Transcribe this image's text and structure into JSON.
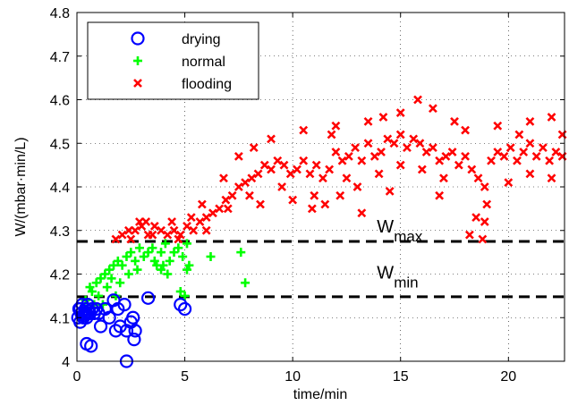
{
  "chart_data": {
    "type": "scatter",
    "xlabel": "time/min",
    "ylabel": "W/(mbar·min/L)",
    "xlim": [
      0,
      22.6
    ],
    "ylim": [
      4.0,
      4.8
    ],
    "xticks": [
      0,
      5,
      10,
      15,
      20
    ],
    "xtick_labels": [
      "0",
      "5",
      "10",
      "15",
      "20"
    ],
    "yticks": [
      4.0,
      4.1,
      4.2,
      4.3,
      4.4,
      4.5,
      4.6,
      4.7,
      4.8
    ],
    "ytick_labels": [
      "4",
      "4.1",
      "4.2",
      "4.3",
      "4.4",
      "4.5",
      "4.6",
      "4.7",
      "4.8"
    ],
    "grid": true,
    "legend": "top-left",
    "colors": {
      "drying": "#0000ff",
      "normal": "#00ff00",
      "flooding": "#ff0000",
      "reference_line": "#000000"
    },
    "series": [
      {
        "name": "drying",
        "marker": "circle",
        "points": [
          [
            0.05,
            4.1
          ],
          [
            0.1,
            4.12
          ],
          [
            0.15,
            4.09
          ],
          [
            0.2,
            4.11
          ],
          [
            0.25,
            4.13
          ],
          [
            0.3,
            4.1
          ],
          [
            0.35,
            4.11
          ],
          [
            0.4,
            4.12
          ],
          [
            0.45,
            4.1
          ],
          [
            0.5,
            4.13
          ],
          [
            0.6,
            4.11
          ],
          [
            0.7,
            4.12
          ],
          [
            0.8,
            4.11
          ],
          [
            0.9,
            4.12
          ],
          [
            1.0,
            4.11
          ],
          [
            0.15,
            4.12
          ],
          [
            0.3,
            4.105
          ],
          [
            0.55,
            4.115
          ],
          [
            0.45,
            4.04
          ],
          [
            0.65,
            4.035
          ],
          [
            1.1,
            4.08
          ],
          [
            1.3,
            4.12
          ],
          [
            1.5,
            4.1
          ],
          [
            1.7,
            4.14
          ],
          [
            1.9,
            4.12
          ],
          [
            2.2,
            4.13
          ],
          [
            2.3,
            4.07
          ],
          [
            2.5,
            4.09
          ],
          [
            2.6,
            4.1
          ],
          [
            2.7,
            4.07
          ],
          [
            2.65,
            4.05
          ],
          [
            2.3,
            4.0
          ],
          [
            2.0,
            4.08
          ],
          [
            1.8,
            4.07
          ],
          [
            3.3,
            4.145
          ],
          [
            4.8,
            4.13
          ],
          [
            5.0,
            4.12
          ]
        ]
      },
      {
        "name": "normal",
        "marker": "plus",
        "points": [
          [
            0.4,
            4.14
          ],
          [
            0.7,
            4.16
          ],
          [
            0.9,
            4.18
          ],
          [
            1.1,
            4.19
          ],
          [
            1.3,
            4.2
          ],
          [
            1.5,
            4.21
          ],
          [
            1.7,
            4.22
          ],
          [
            1.9,
            4.23
          ],
          [
            2.1,
            4.22
          ],
          [
            2.3,
            4.24
          ],
          [
            2.5,
            4.25
          ],
          [
            2.7,
            4.23
          ],
          [
            2.9,
            4.26
          ],
          [
            3.1,
            4.24
          ],
          [
            3.3,
            4.25
          ],
          [
            3.5,
            4.26
          ],
          [
            3.7,
            4.22
          ],
          [
            3.9,
            4.25
          ],
          [
            4.1,
            4.27
          ],
          [
            4.3,
            4.23
          ],
          [
            4.5,
            4.25
          ],
          [
            4.7,
            4.26
          ],
          [
            4.9,
            4.24
          ],
          [
            5.1,
            4.27
          ],
          [
            5.2,
            4.22
          ],
          [
            5.1,
            4.21
          ],
          [
            4.8,
            4.16
          ],
          [
            5.0,
            4.15
          ],
          [
            0.6,
            4.17
          ],
          [
            1.0,
            4.15
          ],
          [
            1.4,
            4.17
          ],
          [
            1.6,
            4.19
          ],
          [
            2.0,
            4.18
          ],
          [
            2.4,
            4.2
          ],
          [
            2.8,
            4.21
          ],
          [
            3.6,
            4.23
          ],
          [
            3.9,
            4.21
          ],
          [
            4.0,
            4.22
          ],
          [
            4.2,
            4.2
          ],
          [
            6.2,
            4.24
          ],
          [
            7.6,
            4.25
          ],
          [
            7.8,
            4.18
          ],
          [
            1.2,
            4.13
          ],
          [
            0.8,
            4.13
          ],
          [
            1.8,
            4.15
          ]
        ]
      },
      {
        "name": "flooding",
        "marker": "x",
        "points": [
          [
            1.8,
            4.28
          ],
          [
            2.1,
            4.29
          ],
          [
            2.4,
            4.3
          ],
          [
            2.7,
            4.3
          ],
          [
            3.0,
            4.31
          ],
          [
            3.3,
            4.29
          ],
          [
            3.6,
            4.31
          ],
          [
            3.9,
            4.3
          ],
          [
            4.2,
            4.29
          ],
          [
            4.5,
            4.3
          ],
          [
            4.8,
            4.29
          ],
          [
            5.1,
            4.31
          ],
          [
            5.4,
            4.3
          ],
          [
            5.7,
            4.32
          ],
          [
            6.0,
            4.33
          ],
          [
            6.3,
            4.34
          ],
          [
            6.6,
            4.35
          ],
          [
            6.9,
            4.37
          ],
          [
            7.2,
            4.38
          ],
          [
            7.5,
            4.4
          ],
          [
            7.8,
            4.41
          ],
          [
            8.1,
            4.42
          ],
          [
            8.4,
            4.43
          ],
          [
            8.7,
            4.45
          ],
          [
            9.0,
            4.44
          ],
          [
            9.3,
            4.46
          ],
          [
            9.6,
            4.45
          ],
          [
            9.9,
            4.43
          ],
          [
            10.2,
            4.44
          ],
          [
            10.5,
            4.46
          ],
          [
            10.8,
            4.43
          ],
          [
            11.1,
            4.45
          ],
          [
            11.4,
            4.42
          ],
          [
            11.7,
            4.44
          ],
          [
            12.0,
            4.48
          ],
          [
            12.3,
            4.46
          ],
          [
            12.6,
            4.47
          ],
          [
            12.9,
            4.49
          ],
          [
            13.2,
            4.46
          ],
          [
            13.5,
            4.5
          ],
          [
            13.8,
            4.47
          ],
          [
            14.1,
            4.48
          ],
          [
            14.4,
            4.51
          ],
          [
            14.7,
            4.5
          ],
          [
            15.0,
            4.52
          ],
          [
            15.3,
            4.49
          ],
          [
            15.6,
            4.51
          ],
          [
            15.9,
            4.5
          ],
          [
            16.2,
            4.48
          ],
          [
            16.5,
            4.49
          ],
          [
            16.8,
            4.46
          ],
          [
            17.1,
            4.47
          ],
          [
            17.4,
            4.48
          ],
          [
            17.7,
            4.45
          ],
          [
            18.0,
            4.47
          ],
          [
            18.3,
            4.44
          ],
          [
            18.6,
            4.42
          ],
          [
            18.9,
            4.4
          ],
          [
            19.2,
            4.46
          ],
          [
            19.5,
            4.48
          ],
          [
            19.8,
            4.47
          ],
          [
            20.1,
            4.49
          ],
          [
            20.4,
            4.46
          ],
          [
            20.7,
            4.48
          ],
          [
            21.0,
            4.5
          ],
          [
            21.3,
            4.47
          ],
          [
            21.6,
            4.49
          ],
          [
            21.9,
            4.46
          ],
          [
            22.2,
            4.48
          ],
          [
            22.5,
            4.47
          ],
          [
            2.5,
            4.28
          ],
          [
            3.5,
            4.29
          ],
          [
            4.7,
            4.28
          ],
          [
            6.0,
            4.3
          ],
          [
            7.0,
            4.35
          ],
          [
            8.0,
            4.38
          ],
          [
            8.5,
            4.36
          ],
          [
            9.5,
            4.4
          ],
          [
            10.0,
            4.37
          ],
          [
            11.0,
            4.38
          ],
          [
            11.5,
            4.36
          ],
          [
            12.5,
            4.42
          ],
          [
            13.0,
            4.4
          ],
          [
            14.0,
            4.43
          ],
          [
            15.0,
            4.45
          ],
          [
            16.0,
            4.44
          ],
          [
            17.0,
            4.42
          ],
          [
            18.2,
            4.29
          ],
          [
            18.8,
            4.28
          ],
          [
            18.9,
            4.32
          ],
          [
            19.0,
            4.36
          ],
          [
            20.0,
            4.41
          ],
          [
            21.0,
            4.43
          ],
          [
            22.0,
            4.42
          ],
          [
            9.0,
            4.51
          ],
          [
            10.5,
            4.53
          ],
          [
            12.0,
            4.54
          ],
          [
            13.5,
            4.55
          ],
          [
            15.0,
            4.57
          ],
          [
            15.8,
            4.6
          ],
          [
            16.5,
            4.58
          ],
          [
            17.5,
            4.55
          ],
          [
            19.5,
            4.54
          ],
          [
            21.0,
            4.55
          ],
          [
            22.0,
            4.56
          ],
          [
            7.5,
            4.47
          ],
          [
            8.2,
            4.49
          ],
          [
            11.8,
            4.52
          ],
          [
            14.2,
            4.56
          ],
          [
            18.0,
            4.53
          ],
          [
            20.5,
            4.52
          ],
          [
            12.2,
            4.38
          ],
          [
            14.5,
            4.39
          ],
          [
            16.8,
            4.38
          ],
          [
            22.5,
            4.52
          ],
          [
            10.9,
            4.35
          ],
          [
            13.2,
            4.34
          ],
          [
            18.5,
            4.33
          ],
          [
            6.8,
            4.42
          ],
          [
            5.8,
            4.36
          ],
          [
            5.3,
            4.33
          ],
          [
            4.4,
            4.32
          ],
          [
            3.2,
            4.32
          ],
          [
            2.9,
            4.32
          ]
        ]
      }
    ],
    "reference_lines": [
      {
        "y": 4.275,
        "label_main": "W",
        "label_sub": "max",
        "label_x": 13.9,
        "label_y": 4.295
      },
      {
        "y": 4.148,
        "label_main": "W",
        "label_sub": "min",
        "label_x": 13.9,
        "label_y": 4.19
      }
    ]
  }
}
